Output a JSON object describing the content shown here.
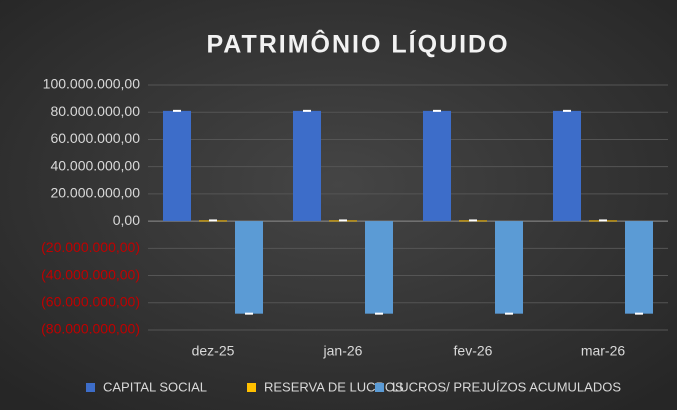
{
  "chart_data": {
    "type": "bar",
    "title": "PATRIMÔNIO LÍQUIDO",
    "categories": [
      "dez-25",
      "jan-26",
      "fev-26",
      "mar-26"
    ],
    "series": [
      {
        "name": "CAPITAL SOCIAL",
        "color": "#3d6dc9",
        "values": [
          81000000,
          81000000,
          81000000,
          81000000
        ]
      },
      {
        "name": "RESERVA DE LUCROS",
        "color": "#ffc000",
        "values": [
          500000,
          500000,
          500000,
          500000
        ]
      },
      {
        "name": "LUCROS/ PREJUÍZOS ACUMULADOS",
        "color": "#5b9bd5",
        "values": [
          -68000000,
          -68000000,
          -68000000,
          -68000000
        ]
      }
    ],
    "ylim": [
      -80000000,
      100000000
    ],
    "yticks": [
      {
        "value": -80000000,
        "label": "(80.000.000,00)"
      },
      {
        "value": -60000000,
        "label": "(60.000.000,00)"
      },
      {
        "value": -40000000,
        "label": "(40.000.000,00)"
      },
      {
        "value": -20000000,
        "label": "(20.000.000,00)"
      },
      {
        "value": 0,
        "label": "0,00"
      },
      {
        "value": 20000000,
        "label": "20.000.000,00"
      },
      {
        "value": 40000000,
        "label": "40.000.000,00"
      },
      {
        "value": 60000000,
        "label": "60.000.000,00"
      },
      {
        "value": 80000000,
        "label": "80.000.000,00"
      },
      {
        "value": 100000000,
        "label": "100.000.000,00"
      }
    ],
    "negative_tick_color": "#c00000",
    "grid": true,
    "legend": "bottom"
  }
}
